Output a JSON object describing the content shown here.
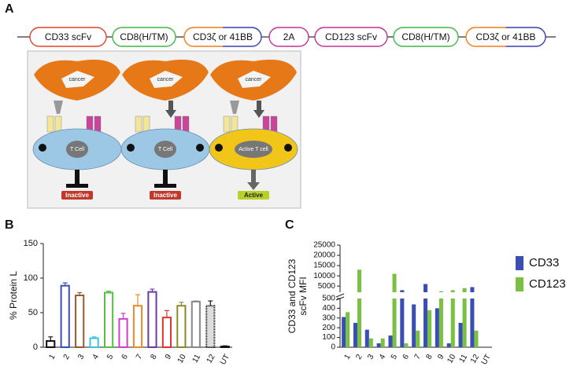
{
  "panel_labels": [
    "A",
    "B",
    "C"
  ],
  "constructs": [
    {
      "label": "CD33 scFv",
      "color": "#e2442a"
    },
    {
      "label": "CD8(H/TM)",
      "color": "#45b649"
    },
    {
      "label": "CD3ζ or 41BB",
      "color": "split"
    },
    {
      "label": "2A",
      "color": "#c2338f"
    },
    {
      "label": "CD123 scFv",
      "color": "#c2338f"
    },
    {
      "label": "CD8(H/TM)",
      "color": "#45b649"
    },
    {
      "label": "CD3ζ or 41BB",
      "color": "split"
    }
  ],
  "diagram": {
    "panels": [
      {
        "cancer": "cancer",
        "cell": "T Cell",
        "state": "Inactive"
      },
      {
        "cancer": "cancer",
        "cell": "T Cell",
        "state": "Inactive"
      },
      {
        "cancer": "cancer",
        "cell": "Active T cell",
        "state": "Active"
      }
    ]
  },
  "chart_data": [
    {
      "type": "bar",
      "ylabel": "% Protein L",
      "categories": [
        "1",
        "2",
        "3",
        "4",
        "5",
        "6",
        "7",
        "8",
        "9",
        "10",
        "11",
        "12",
        "UT"
      ],
      "values": [
        9,
        89,
        75,
        13,
        79,
        41,
        60,
        80,
        43,
        60,
        66,
        60,
        1
      ],
      "errors": [
        6,
        4,
        4,
        2,
        2,
        8,
        16,
        4,
        10,
        5,
        1,
        7,
        1
      ],
      "colors": [
        "#111111",
        "#3a4fb5",
        "#9a5b2a",
        "#3fc4e0",
        "#57c13f",
        "#d23fd0",
        "#e98b2a",
        "#6b3aa0",
        "#e0342d",
        "#8a8a2a",
        "#888888",
        "#111111",
        "#111111"
      ],
      "ylim": [
        0,
        150
      ],
      "yticks": [
        0,
        50,
        100,
        150
      ]
    },
    {
      "type": "broken_bar",
      "ylabel": [
        "CD33 and CD123",
        "scFv MFI"
      ],
      "categories": [
        "1",
        "2",
        "3",
        "4",
        "5",
        "6",
        "7",
        "8",
        "9",
        "10",
        "11",
        "12",
        "UT"
      ],
      "series": [
        {
          "name": "CD33",
          "color": "#3a4fb5",
          "values": [
            310,
            250,
            180,
            40,
            120,
            3000,
            440,
            6000,
            400,
            40,
            250,
            4500,
            0
          ]
        },
        {
          "name": "CD123",
          "color": "#7ac143",
          "values": [
            360,
            13000,
            90,
            90,
            11000,
            40,
            170,
            380,
            2500,
            3000,
            4000,
            170,
            0
          ]
        }
      ],
      "axis_segments": [
        {
          "ylim": [
            0,
            500
          ],
          "yticks": [
            0,
            100,
            200,
            300,
            400,
            500
          ]
        },
        {
          "ylim": [
            2000,
            25000
          ],
          "yticks": [
            5000,
            10000,
            15000,
            20000,
            25000
          ]
        }
      ]
    }
  ]
}
